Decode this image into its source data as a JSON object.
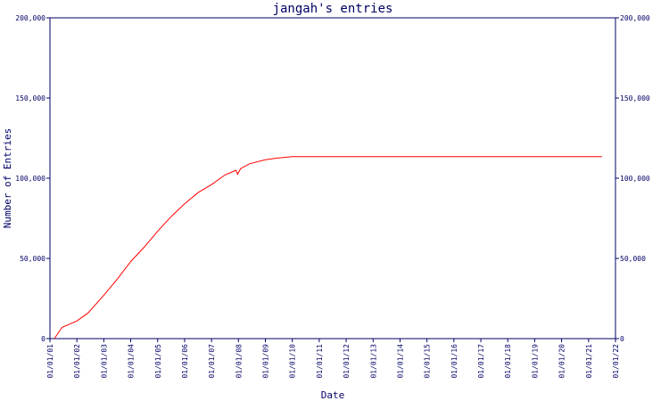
{
  "chart_data": {
    "type": "line",
    "title": "jangah's entries",
    "xlabel": "Date",
    "ylabel": "Number of Entries",
    "ylim": [
      0,
      200000
    ],
    "y_ticks": [
      0,
      50000,
      100000,
      150000,
      200000
    ],
    "y_tick_labels": [
      "0",
      "50,000",
      "100,000",
      "150,000",
      "200,000"
    ],
    "x_ticks": [
      "2001-01-01",
      "2002-01-01",
      "2003-01-01",
      "2004-01-01",
      "2005-01-01",
      "2006-01-01",
      "2007-01-01",
      "2008-01-01",
      "2009-01-01",
      "2010-01-01",
      "2011-01-01",
      "2012-01-01",
      "2013-01-01",
      "2014-01-01",
      "2015-01-01",
      "2016-01-01",
      "2017-01-01",
      "2018-01-01",
      "2019-01-01",
      "2020-01-01",
      "2021-01-01",
      "2022-01-01"
    ],
    "x_tick_labels": [
      "01/01/01",
      "01/01/02",
      "01/01/03",
      "01/01/04",
      "01/01/05",
      "01/01/06",
      "01/01/07",
      "01/01/08",
      "01/01/09",
      "01/01/10",
      "01/01/11",
      "01/01/12",
      "01/01/13",
      "01/01/14",
      "01/01/15",
      "01/01/16",
      "01/01/17",
      "01/01/18",
      "01/01/19",
      "01/01/20",
      "01/01/21",
      "01/01/22"
    ],
    "xlim": [
      "2001-01-01",
      "2022-01-01"
    ],
    "right_axis": true,
    "grid": false,
    "colors": {
      "axis": "#000066",
      "series": "#ff0000"
    },
    "series": [
      {
        "color": "#ff0000",
        "points": [
          [
            "2001-03-01",
            0
          ],
          [
            "2001-06-15",
            7000
          ],
          [
            "2002-01-01",
            11000
          ],
          [
            "2002-06-01",
            16000
          ],
          [
            "2003-01-01",
            27000
          ],
          [
            "2003-07-01",
            37000
          ],
          [
            "2004-01-01",
            48000
          ],
          [
            "2004-07-01",
            57000
          ],
          [
            "2005-01-01",
            67000
          ],
          [
            "2005-07-01",
            76000
          ],
          [
            "2006-01-01",
            84000
          ],
          [
            "2006-07-01",
            91000
          ],
          [
            "2007-01-01",
            96000
          ],
          [
            "2007-07-01",
            102000
          ],
          [
            "2007-12-01",
            105000
          ],
          [
            "2007-12-20",
            102500
          ],
          [
            "2008-02-01",
            106000
          ],
          [
            "2008-06-01",
            109000
          ],
          [
            "2009-01-01",
            111500
          ],
          [
            "2009-06-01",
            112500
          ],
          [
            "2010-01-01",
            113500
          ],
          [
            "2015-01-01",
            113500
          ],
          [
            "2021-07-01",
            113500
          ]
        ]
      }
    ]
  }
}
